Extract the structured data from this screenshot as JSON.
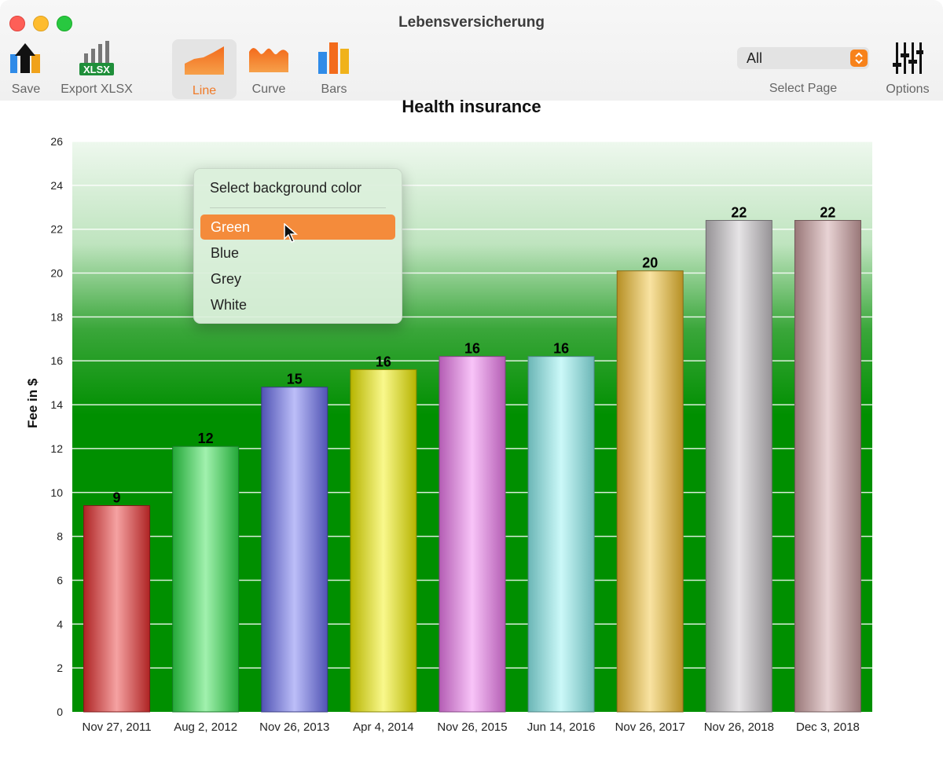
{
  "window": {
    "title": "Lebensversicherung"
  },
  "toolbar": {
    "save_label": "Save",
    "export_label": "Export XLSX",
    "export_icon_text": "XLSX",
    "line_label": "Line",
    "curve_label": "Curve",
    "bars_label": "Bars",
    "select_page_value": "All",
    "select_page_label": "Select Page",
    "options_label": "Options"
  },
  "context_menu": {
    "header": "Select background color",
    "items": [
      {
        "label": "Green",
        "highlighted": true
      },
      {
        "label": "Blue"
      },
      {
        "label": "Grey"
      },
      {
        "label": "White"
      }
    ]
  },
  "colors": {
    "accent": "#f48b3b",
    "plot_background": "#008f00",
    "bars": [
      "#e83030",
      "#2ee04a",
      "#6a6ff0",
      "#f2f000",
      "#f07cf0",
      "#8ef2f2",
      "#f2c030",
      "#c8c4c8",
      "#cc9ea0"
    ]
  },
  "chart_data": {
    "type": "bar",
    "title": "Health insurance",
    "ylabel": "Fee in $",
    "xlabel": "",
    "categories": [
      "Nov 27, 2011",
      "Aug 2, 2012",
      "Nov 26, 2013",
      "Apr 4, 2014",
      "Nov 26, 2015",
      "Jun 14, 2016",
      "Nov 26, 2017",
      "Nov 26, 2018",
      "Dec 3, 2018"
    ],
    "values": [
      9.4,
      12.1,
      14.8,
      15.6,
      16.2,
      16.2,
      20.1,
      22.4,
      22.4
    ],
    "data_labels": [
      "9",
      "12",
      "15",
      "16",
      "16",
      "16",
      "20",
      "22",
      "22"
    ],
    "ylim": [
      0,
      26
    ],
    "yticks": [
      "0",
      "2",
      "4",
      "6",
      "8",
      "10",
      "12",
      "14",
      "16",
      "18",
      "20",
      "22",
      "24",
      "26"
    ],
    "grid": true,
    "legend": "none"
  }
}
